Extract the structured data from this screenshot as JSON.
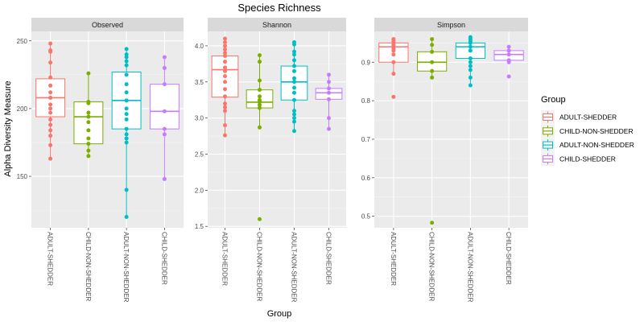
{
  "chart_data": {
    "type": "box",
    "title": "Species Richness",
    "xlabel": "Group",
    "ylabel": "Alpha Diversity Measure",
    "grid": true,
    "legend": {
      "title": "Group",
      "placement": "right",
      "entries": [
        {
          "label": "ADULT-SHEDDER",
          "color": "#F8766D"
        },
        {
          "label": "CHILD-NON-SHEDDER",
          "color": "#7CAE00"
        },
        {
          "label": "ADULT-NON-SHEDDER",
          "color": "#00BFC4"
        },
        {
          "label": "CHILD-SHEDDER",
          "color": "#C77CFF"
        }
      ]
    },
    "categories": [
      "ADULT-SHEDDER",
      "CHILD-NON-SHEDDER",
      "ADULT-NON-SHEDDER",
      "CHILD-SHEDDER"
    ],
    "panels": [
      {
        "name": "Observed",
        "ylim": [
          112,
          257
        ],
        "yticks": [
          150,
          200,
          250
        ],
        "yticklabels": [
          "150",
          "200",
          "250"
        ],
        "boxes": [
          {
            "group": "ADULT-SHEDDER",
            "min": 163,
            "q1": 194,
            "median": 208,
            "q3": 222,
            "max": 248,
            "points": [
              248,
              243,
              242,
              234,
              223,
              217,
              212,
              208,
              203,
              200,
              197,
              192,
              188,
              184,
              180,
              173,
              163
            ]
          },
          {
            "group": "CHILD-NON-SHEDDER",
            "min": 165,
            "q1": 174,
            "median": 194,
            "q3": 205,
            "max": 226,
            "points": [
              226,
              205,
              204,
              197,
              194,
              190,
              184,
              178,
              174,
              169,
              165
            ]
          },
          {
            "group": "ADULT-NON-SHEDDER",
            "min": 120,
            "q1": 185,
            "median": 206,
            "q3": 227,
            "max": 244,
            "points": [
              244,
              240,
              238,
              235,
              232,
              225,
              218,
              212,
              206,
              200,
              196,
              192,
              185,
              181,
              178,
              175,
              140,
              120
            ]
          },
          {
            "group": "CHILD-SHEDDER",
            "min": 148,
            "q1": 185,
            "median": 198,
            "q3": 218,
            "max": 238,
            "points": [
              238,
              230,
              218,
              198,
              185,
              181,
              148
            ]
          }
        ]
      },
      {
        "name": "Shannon",
        "ylim": [
          1.48,
          4.2
        ],
        "yticks": [
          1.5,
          2.0,
          2.5,
          3.0,
          3.5,
          4.0
        ],
        "yticklabels": [
          "1.5",
          "2.0",
          "2.5",
          "3.0",
          "3.5",
          "4.0"
        ],
        "boxes": [
          {
            "group": "ADULT-SHEDDER",
            "min": 2.76,
            "q1": 3.29,
            "median": 3.67,
            "q3": 3.86,
            "max": 4.1,
            "points": [
              4.1,
              4.05,
              4.0,
              3.95,
              3.9,
              3.86,
              3.78,
              3.7,
              3.65,
              3.58,
              3.5,
              3.4,
              3.3,
              3.2,
              3.15,
              3.1,
              2.9,
              2.76
            ]
          },
          {
            "group": "CHILD-NON-SHEDDER",
            "min": 2.87,
            "q1": 3.14,
            "median": 3.22,
            "q3": 3.39,
            "max": 3.87,
            "points": [
              3.87,
              3.78,
              3.52,
              3.39,
              3.3,
              3.25,
              3.22,
              3.18,
              3.14,
              2.87,
              1.6
            ]
          },
          {
            "group": "ADULT-NON-SHEDDER",
            "min": 2.82,
            "q1": 3.25,
            "median": 3.5,
            "q3": 3.72,
            "max": 4.05,
            "points": [
              4.05,
              4.02,
              3.92,
              3.88,
              3.8,
              3.72,
              3.65,
              3.55,
              3.5,
              3.42,
              3.35,
              3.25,
              3.1,
              3.05,
              3.0,
              2.95,
              2.82
            ]
          },
          {
            "group": "CHILD-SHEDDER",
            "min": 2.85,
            "q1": 3.26,
            "median": 3.35,
            "q3": 3.41,
            "max": 3.6,
            "points": [
              3.6,
              3.5,
              3.41,
              3.35,
              3.26,
              3.0,
              2.85
            ]
          }
        ]
      },
      {
        "name": "Simpson",
        "ylim": [
          0.47,
          0.98
        ],
        "yticks": [
          0.5,
          0.6,
          0.7,
          0.8,
          0.9
        ],
        "yticklabels": [
          "0.5",
          "0.6",
          "0.7",
          "0.8",
          "0.9"
        ],
        "boxes": [
          {
            "group": "ADULT-SHEDDER",
            "min": 0.87,
            "q1": 0.9,
            "median": 0.94,
            "q3": 0.95,
            "max": 0.96,
            "points": [
              0.96,
              0.955,
              0.95,
              0.945,
              0.94,
              0.935,
              0.93,
              0.92,
              0.9,
              0.87,
              0.81
            ]
          },
          {
            "group": "CHILD-NON-SHEDDER",
            "min": 0.86,
            "q1": 0.877,
            "median": 0.9,
            "q3": 0.927,
            "max": 0.96,
            "points": [
              0.96,
              0.945,
              0.927,
              0.9,
              0.877,
              0.86,
              0.483
            ]
          },
          {
            "group": "ADULT-NON-SHEDDER",
            "min": 0.84,
            "q1": 0.91,
            "median": 0.94,
            "q3": 0.95,
            "max": 0.965,
            "points": [
              0.965,
              0.96,
              0.955,
              0.95,
              0.94,
              0.93,
              0.91,
              0.9,
              0.89,
              0.88,
              0.86,
              0.84
            ]
          },
          {
            "group": "CHILD-SHEDDER",
            "min": 0.9,
            "q1": 0.905,
            "median": 0.92,
            "q3": 0.93,
            "max": 0.94,
            "points": [
              0.94,
              0.93,
              0.92,
              0.905,
              0.9,
              0.863
            ]
          }
        ]
      }
    ]
  }
}
